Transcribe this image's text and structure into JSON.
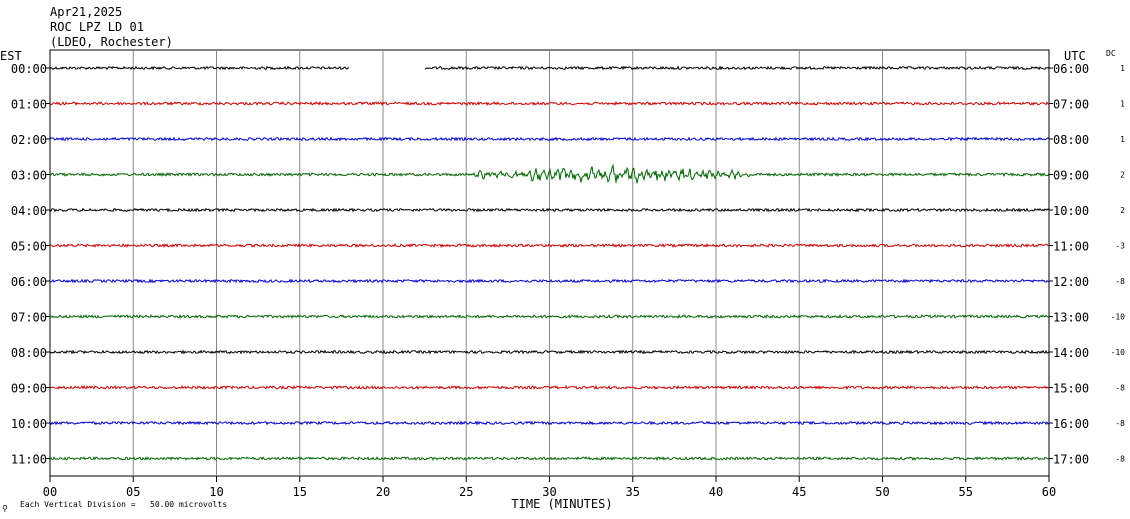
{
  "header": {
    "line1": "Apr21,2025",
    "line2": "ROC LPZ LD 01",
    "line3": "(LDEO, Rochester)"
  },
  "footer": {
    "mark": "⚲",
    "scale_note": "Each Vertical Division =   50.00 microvolts"
  },
  "chart_data": {
    "type": "line",
    "title": "",
    "xlabel": "TIME (MINUTES)",
    "xlim": [
      0,
      60
    ],
    "x_ticks": [
      0,
      5,
      10,
      15,
      20,
      25,
      30,
      35,
      40,
      45,
      50,
      55,
      60
    ],
    "x_tick_labels": [
      "00",
      "05",
      "10",
      "15",
      "20",
      "25",
      "30",
      "35",
      "40",
      "45",
      "50",
      "55",
      "60"
    ],
    "grid": true,
    "left_axis_title": "EST",
    "right_axis_title": "UTC",
    "dc_title": "DC",
    "rows": [
      {
        "est": "00:00",
        "utc": "06:00",
        "dc": "1",
        "color": "#000000",
        "gaps": [
          [
            18.0,
            22.5
          ]
        ]
      },
      {
        "est": "01:00",
        "utc": "07:00",
        "dc": "1",
        "color": "#cc0000",
        "gaps": []
      },
      {
        "est": "02:00",
        "utc": "08:00",
        "dc": "1",
        "color": "#0000cc",
        "gaps": []
      },
      {
        "est": "03:00",
        "utc": "09:00",
        "dc": "2",
        "color": "#006600",
        "gaps": [],
        "event": [
          25.5,
          42.0
        ]
      },
      {
        "est": "04:00",
        "utc": "10:00",
        "dc": "2",
        "color": "#000000",
        "gaps": []
      },
      {
        "est": "05:00",
        "utc": "11:00",
        "dc": "-3",
        "color": "#cc0000",
        "gaps": []
      },
      {
        "est": "06:00",
        "utc": "12:00",
        "dc": "-8",
        "color": "#0000cc",
        "gaps": []
      },
      {
        "est": "07:00",
        "utc": "13:00",
        "dc": "-10",
        "color": "#006600",
        "gaps": []
      },
      {
        "est": "08:00",
        "utc": "14:00",
        "dc": "-10",
        "color": "#000000",
        "gaps": []
      },
      {
        "est": "09:00",
        "utc": "15:00",
        "dc": "-8",
        "color": "#cc0000",
        "gaps": []
      },
      {
        "est": "10:00",
        "utc": "16:00",
        "dc": "-8",
        "color": "#0000cc",
        "gaps": []
      },
      {
        "est": "11:00",
        "utc": "17:00",
        "dc": "-8",
        "color": "#006600",
        "gaps": []
      }
    ]
  }
}
